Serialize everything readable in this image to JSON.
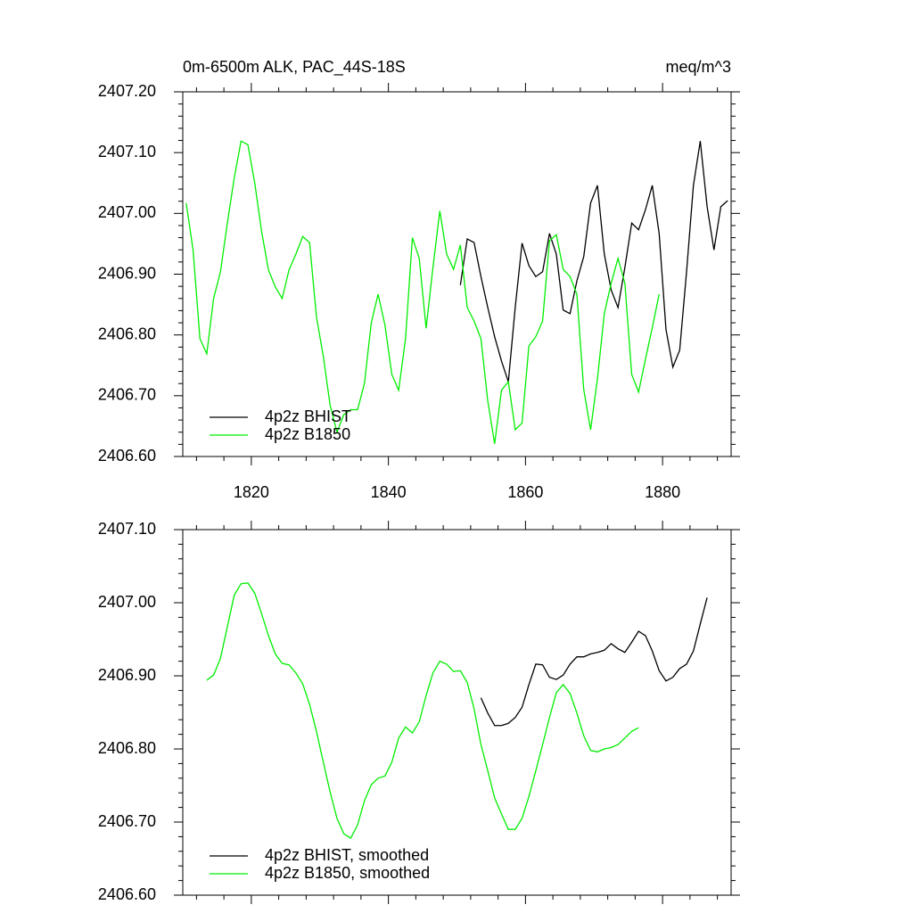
{
  "chart_data": [
    {
      "type": "line",
      "title": "0m-6500m ALK, PAC_44S-18S",
      "units": "meq/m^3",
      "x": [
        1810.5,
        1811.5,
        1812.5,
        1813.5,
        1814.5,
        1815.5,
        1816.5,
        1817.5,
        1818.5,
        1819.5,
        1820.5,
        1821.5,
        1822.5,
        1823.5,
        1824.5,
        1825.5,
        1826.5,
        1827.5,
        1828.5,
        1829.5,
        1830.5,
        1831.5,
        1832.5,
        1833.5,
        1834.5,
        1835.5,
        1836.5,
        1837.5,
        1838.5,
        1839.5,
        1840.5,
        1841.5,
        1842.5,
        1843.5,
        1844.5,
        1845.5,
        1846.5,
        1847.5,
        1848.5,
        1849.5,
        1850.5,
        1851.5,
        1852.5,
        1853.5,
        1854.5,
        1855.5,
        1856.5,
        1857.5,
        1858.5,
        1859.5,
        1860.5,
        1861.5,
        1862.5,
        1863.5,
        1864.5,
        1865.5,
        1866.5,
        1867.5,
        1868.5,
        1869.5,
        1870.5,
        1871.5,
        1872.5,
        1873.5,
        1874.5,
        1875.5,
        1876.5,
        1877.5,
        1878.5,
        1879.5,
        1880.5,
        1881.5,
        1882.5,
        1883.5,
        1884.5,
        1885.5,
        1886.5,
        1887.5,
        1888.5,
        1889.5
      ],
      "series": [
        {
          "name": "4p2z BHIST",
          "color": "#000000",
          "values": [
            null,
            null,
            null,
            null,
            null,
            null,
            null,
            null,
            null,
            null,
            null,
            null,
            null,
            null,
            null,
            null,
            null,
            null,
            null,
            null,
            null,
            null,
            null,
            null,
            null,
            null,
            null,
            null,
            null,
            null,
            null,
            null,
            null,
            null,
            null,
            null,
            null,
            null,
            null,
            null,
            2406.882,
            2406.958,
            2406.952,
            2406.896,
            2406.845,
            2406.797,
            2406.757,
            2406.723,
            2406.845,
            2406.951,
            2406.914,
            2406.896,
            2406.904,
            2406.967,
            2406.933,
            2406.841,
            2406.835,
            2406.889,
            2406.929,
            2407.017,
            2407.046,
            2406.933,
            2406.874,
            2406.845,
            2406.911,
            2406.984,
            2406.973,
            2407.006,
            2407.046,
            2406.967,
            2406.809,
            2406.747,
            2406.775,
            2406.904,
            2407.046,
            2407.119,
            2407.011,
            2406.94,
            2407.011,
            2407.021
          ]
        },
        {
          "name": "4p2z B1850",
          "color": "#00ee00",
          "values": [
            2407.017,
            2406.94,
            2406.794,
            2406.769,
            2406.86,
            2406.904,
            2406.984,
            2407.058,
            2407.119,
            2407.113,
            2407.05,
            2406.97,
            2406.907,
            2406.879,
            2406.86,
            2406.907,
            2406.933,
            2406.962,
            2406.952,
            2406.83,
            2406.765,
            2406.684,
            2406.64,
            2406.669,
            2406.677,
            2406.677,
            2406.72,
            2406.82,
            2406.867,
            2406.816,
            2406.735,
            2406.709,
            2406.794,
            2406.96,
            2406.926,
            2406.811,
            2406.911,
            2407.004,
            2406.933,
            2406.908,
            2406.948,
            2406.845,
            2406.823,
            2406.794,
            2406.691,
            2406.621,
            2406.709,
            2406.723,
            2406.644,
            2406.655,
            2406.782,
            2406.797,
            2406.823,
            2406.955,
            2406.965,
            2406.908,
            2406.896,
            2406.867,
            2406.71,
            2406.644,
            2406.728,
            2406.835,
            2406.885,
            2406.926,
            2406.885,
            2406.735,
            2406.706,
            2406.76,
            2406.812,
            2406.867,
            null,
            null,
            null,
            null,
            null,
            null,
            null,
            null,
            null,
            null
          ]
        }
      ],
      "xlim": [
        1810,
        1890
      ],
      "xticks": [
        1820,
        1840,
        1860,
        1880
      ],
      "ylim": [
        2406.6,
        2407.2
      ],
      "yticks": [
        {
          "value": 2406.6,
          "label": "2406.60"
        },
        {
          "value": 2406.7,
          "label": "2406.70"
        },
        {
          "value": 2406.8,
          "label": "2406.80"
        },
        {
          "value": 2406.9,
          "label": "2406.90"
        },
        {
          "value": 2407.0,
          "label": "2407.00"
        },
        {
          "value": 2407.1,
          "label": "2407.10"
        },
        {
          "value": 2407.2,
          "label": "2407.20"
        }
      ],
      "legend": "lower left"
    },
    {
      "type": "line",
      "x": [
        1810.5,
        1811.5,
        1812.5,
        1813.5,
        1814.5,
        1815.5,
        1816.5,
        1817.5,
        1818.5,
        1819.5,
        1820.5,
        1821.5,
        1822.5,
        1823.5,
        1824.5,
        1825.5,
        1826.5,
        1827.5,
        1828.5,
        1829.5,
        1830.5,
        1831.5,
        1832.5,
        1833.5,
        1834.5,
        1835.5,
        1836.5,
        1837.5,
        1838.5,
        1839.5,
        1840.5,
        1841.5,
        1842.5,
        1843.5,
        1844.5,
        1845.5,
        1846.5,
        1847.5,
        1848.5,
        1849.5,
        1850.5,
        1851.5,
        1852.5,
        1853.5,
        1854.5,
        1855.5,
        1856.5,
        1857.5,
        1858.5,
        1859.5,
        1860.5,
        1861.5,
        1862.5,
        1863.5,
        1864.5,
        1865.5,
        1866.5,
        1867.5,
        1868.5,
        1869.5,
        1870.5,
        1871.5,
        1872.5,
        1873.5,
        1874.5,
        1875.5,
        1876.5,
        1877.5,
        1878.5,
        1879.5,
        1880.5,
        1881.5,
        1882.5,
        1883.5,
        1884.5,
        1885.5,
        1886.5,
        1887.5,
        1888.5,
        1889.5
      ],
      "series": [
        {
          "name": "4p2z BHIST, smoothed",
          "color": "#000000",
          "values": [
            null,
            null,
            null,
            null,
            null,
            null,
            null,
            null,
            null,
            null,
            null,
            null,
            null,
            null,
            null,
            null,
            null,
            null,
            null,
            null,
            null,
            null,
            null,
            null,
            null,
            null,
            null,
            null,
            null,
            null,
            null,
            null,
            null,
            null,
            null,
            null,
            null,
            null,
            null,
            null,
            null,
            null,
            null,
            2406.87,
            2406.849,
            2406.832,
            2406.832,
            2406.835,
            2406.843,
            2406.857,
            2406.888,
            2406.916,
            2406.915,
            2406.898,
            2406.895,
            2406.901,
            2406.916,
            2406.926,
            2406.926,
            2406.93,
            2406.932,
            2406.935,
            2406.944,
            2406.937,
            2406.932,
            2406.946,
            2406.961,
            2406.955,
            2406.934,
            2406.907,
            2406.893,
            2406.898,
            2406.91,
            2406.916,
            2406.934,
            2406.971,
            2407.007,
            null,
            null,
            null
          ]
        },
        {
          "name": "4p2z B1850, smoothed",
          "color": "#00ee00",
          "values": [
            null,
            null,
            null,
            2406.894,
            2406.901,
            2406.924,
            2406.967,
            2407.01,
            2407.026,
            2407.027,
            2407.013,
            2406.985,
            2406.955,
            2406.93,
            2406.917,
            2406.915,
            2406.904,
            2406.889,
            2406.861,
            2406.824,
            2406.782,
            2406.741,
            2406.705,
            2406.684,
            2406.678,
            2406.696,
            2406.729,
            2406.751,
            2406.76,
            2406.763,
            2406.782,
            2406.815,
            2406.83,
            2406.822,
            2406.837,
            2406.873,
            2406.904,
            2406.92,
            2406.916,
            2406.906,
            2406.907,
            2406.891,
            2406.855,
            2406.806,
            2406.77,
            2406.733,
            2406.711,
            2406.69,
            2406.69,
            2406.705,
            2406.735,
            2406.77,
            2406.806,
            2406.843,
            2406.877,
            2406.888,
            2406.876,
            2406.849,
            2406.818,
            2406.798,
            2406.796,
            2406.8,
            2406.802,
            2406.806,
            2406.815,
            2406.824,
            2406.829,
            null,
            null,
            null,
            null,
            null,
            null,
            null,
            null,
            null,
            null,
            null,
            null,
            null
          ]
        }
      ],
      "xlim": [
        1810,
        1890
      ],
      "xticks": [
        1820,
        1840,
        1860,
        1880
      ],
      "show_xtick_labels": false,
      "ylim": [
        2406.6,
        2407.1
      ],
      "yticks": [
        {
          "value": 2406.6,
          "label": "2406.60"
        },
        {
          "value": 2406.7,
          "label": "2406.70"
        },
        {
          "value": 2406.8,
          "label": "2406.80"
        },
        {
          "value": 2406.9,
          "label": "2406.90"
        },
        {
          "value": 2407.0,
          "label": "2407.00"
        },
        {
          "value": 2407.1,
          "label": "2407.10"
        }
      ],
      "legend": "lower left"
    }
  ]
}
